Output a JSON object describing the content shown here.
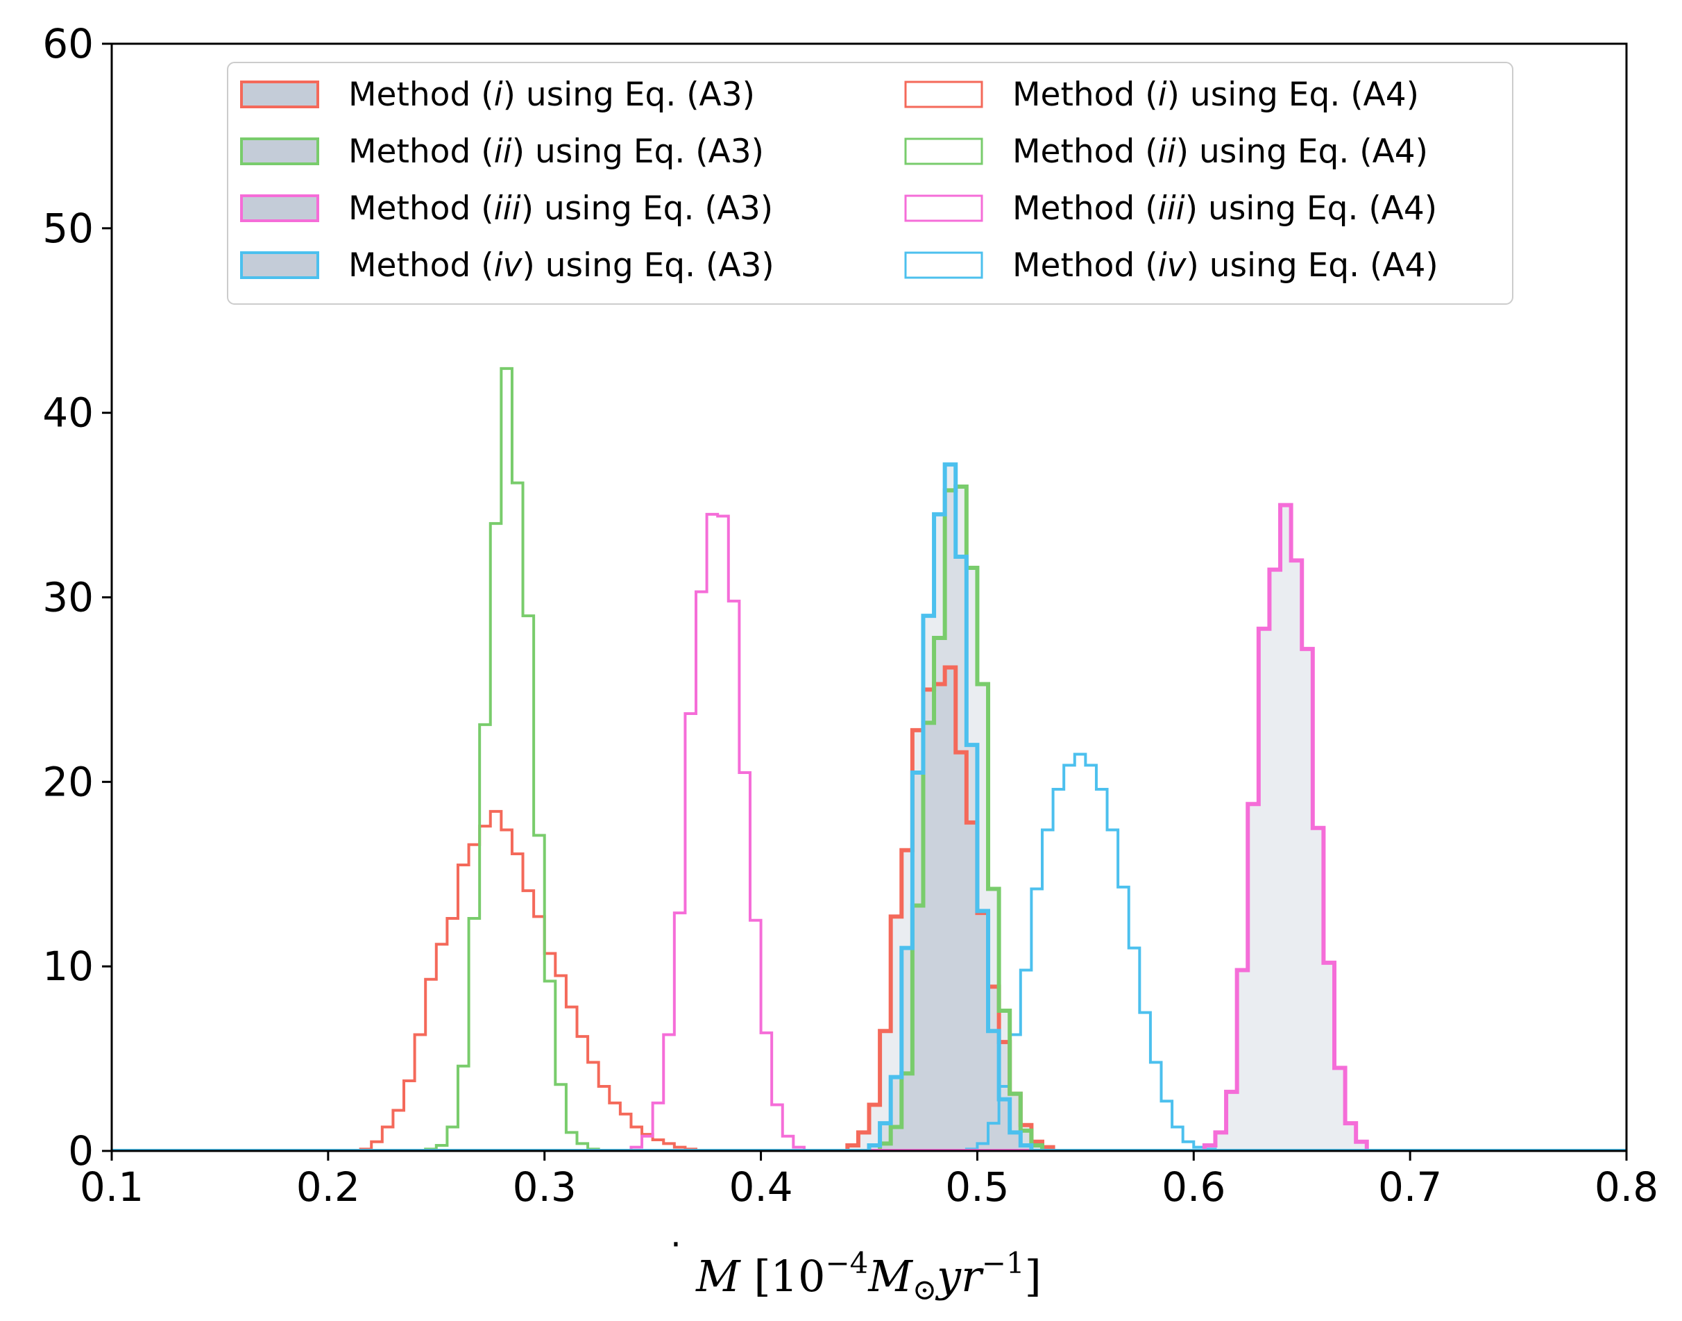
{
  "chart_data": {
    "type": "histogram",
    "xlim": [
      0.1,
      0.8
    ],
    "ylim": [
      0,
      60
    ],
    "xticks": [
      "0.1",
      "0.2",
      "0.3",
      "0.4",
      "0.5",
      "0.6",
      "0.7",
      "0.8"
    ],
    "yticks": [
      "0",
      "10",
      "20",
      "30",
      "40",
      "50",
      "60"
    ],
    "xlabel": {
      "symbol": "M",
      "open": " [10",
      "exp1": "−4",
      "mass": "M",
      "sun": "⊙",
      "yr": "yr",
      "exp2": "−1",
      "close": "]"
    },
    "grid": false,
    "legend_position": "top-center",
    "legend_columns": 2,
    "bin_width": 0.005,
    "series": [
      {
        "key": "i_a3",
        "legend": {
          "prefix": "Method (",
          "method": "i",
          "suffix": ") using Eq. (A3)"
        },
        "color": "#f4695a",
        "filled": true,
        "fill": "#94a3b8",
        "fill_opacity": 0.2,
        "line_width": 3,
        "x_start": 0.44,
        "counts": [
          0.3,
          1.0,
          2.5,
          6.5,
          12.7,
          16.3,
          22.8,
          25.0,
          25.3,
          26.2,
          21.6,
          17.8,
          12.9,
          8.9,
          5.9,
          3.1,
          1.4,
          0.5,
          0.2
        ]
      },
      {
        "key": "ii_a3",
        "legend": {
          "prefix": "Method (",
          "method": "ii",
          "suffix": ") using Eq. (A3)"
        },
        "color": "#79cc6c",
        "filled": true,
        "fill": "#94a3b8",
        "fill_opacity": 0.2,
        "line_width": 3,
        "x_start": 0.455,
        "counts": [
          0.4,
          1.3,
          4.2,
          13.3,
          23.2,
          27.8,
          35.8,
          36.0,
          31.6,
          25.3,
          14.2,
          7.6,
          3.1,
          1.1,
          0.3
        ]
      },
      {
        "key": "iii_a3",
        "legend": {
          "prefix": "Method (",
          "method": "iii",
          "suffix": ") using Eq. (A3)"
        },
        "color": "#f56dd8",
        "filled": true,
        "fill": "#94a3b8",
        "fill_opacity": 0.2,
        "line_width": 3,
        "x_start": 0.605,
        "counts": [
          0.3,
          1.0,
          3.2,
          9.8,
          18.8,
          28.3,
          31.5,
          35.0,
          32.0,
          27.2,
          17.5,
          10.2,
          4.5,
          1.5,
          0.5
        ]
      },
      {
        "key": "iv_a3",
        "legend": {
          "prefix": "Method (",
          "method": "iv",
          "suffix": ") using Eq. (A3)"
        },
        "color": "#4cc0ee",
        "filled": true,
        "fill": "#94a3b8",
        "fill_opacity": 0.2,
        "line_width": 3,
        "x_start": 0.45,
        "counts": [
          0.3,
          1.5,
          4.0,
          11.0,
          20.5,
          29.0,
          34.5,
          37.2,
          32.2,
          22.0,
          13.0,
          6.5,
          2.8,
          1.0,
          0.3
        ]
      },
      {
        "key": "i_a4",
        "legend": {
          "prefix": "Method (",
          "method": "i",
          "suffix": ") using Eq. (A4)"
        },
        "color": "#f4695a",
        "filled": false,
        "line_width": 2,
        "x_start": 0.215,
        "counts": [
          0.1,
          0.5,
          1.3,
          2.2,
          3.8,
          6.3,
          9.3,
          11.2,
          12.6,
          15.5,
          16.6,
          17.6,
          18.4,
          17.4,
          16.1,
          14.1,
          12.7,
          10.7,
          9.5,
          7.8,
          6.2,
          4.8,
          3.5,
          2.6,
          2.0,
          1.3,
          0.9,
          0.6,
          0.4,
          0.2,
          0.1
        ]
      },
      {
        "key": "ii_a4",
        "legend": {
          "prefix": "Method (",
          "method": "ii",
          "suffix": ") using Eq. (A4)"
        },
        "color": "#79cc6c",
        "filled": false,
        "line_width": 2,
        "x_start": 0.245,
        "counts": [
          0.1,
          0.3,
          1.3,
          4.6,
          12.6,
          23.1,
          34.0,
          42.4,
          36.2,
          29.0,
          17.1,
          9.2,
          3.6,
          1.0,
          0.4,
          0.1
        ]
      },
      {
        "key": "iii_a4",
        "legend": {
          "prefix": "Method (",
          "method": "iii",
          "suffix": ") using Eq. (A4)"
        },
        "color": "#f56dd8",
        "filled": false,
        "line_width": 2,
        "x_start": 0.34,
        "counts": [
          0.2,
          0.8,
          2.6,
          6.3,
          12.9,
          23.7,
          30.3,
          34.5,
          34.4,
          29.8,
          20.5,
          12.5,
          6.4,
          2.5,
          0.8,
          0.2
        ]
      },
      {
        "key": "iv_a4",
        "legend": {
          "prefix": "Method (",
          "method": "iv",
          "suffix": ") using Eq. (A4)"
        },
        "color": "#4cc0ee",
        "filled": false,
        "line_width": 2,
        "x_start": 0.495,
        "counts": [
          0.1,
          0.4,
          1.5,
          3.5,
          6.3,
          9.8,
          14.2,
          17.4,
          19.6,
          20.9,
          21.5,
          20.9,
          19.6,
          17.4,
          14.3,
          11.0,
          7.5,
          4.8,
          2.7,
          1.3,
          0.5,
          0.2,
          0.1
        ]
      }
    ]
  }
}
